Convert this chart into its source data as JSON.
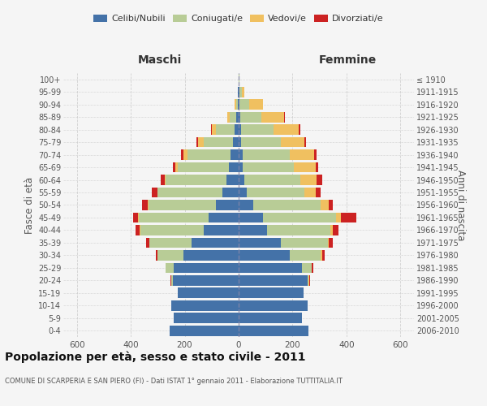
{
  "age_groups": [
    "0-4",
    "5-9",
    "10-14",
    "15-19",
    "20-24",
    "25-29",
    "30-34",
    "35-39",
    "40-44",
    "45-49",
    "50-54",
    "55-59",
    "60-64",
    "65-69",
    "70-74",
    "75-79",
    "80-84",
    "85-89",
    "90-94",
    "95-99",
    "100+"
  ],
  "birth_years": [
    "2006-2010",
    "2001-2005",
    "1996-2000",
    "1991-1995",
    "1986-1990",
    "1981-1985",
    "1976-1980",
    "1971-1975",
    "1966-1970",
    "1961-1965",
    "1956-1960",
    "1951-1955",
    "1946-1950",
    "1941-1945",
    "1936-1940",
    "1931-1935",
    "1926-1930",
    "1921-1925",
    "1916-1920",
    "1911-1915",
    "≤ 1910"
  ],
  "males": {
    "celibi": [
      255,
      240,
      250,
      225,
      245,
      240,
      205,
      175,
      130,
      110,
      85,
      60,
      45,
      35,
      30,
      20,
      15,
      8,
      4,
      2,
      0
    ],
    "coniugati": [
      0,
      0,
      0,
      0,
      5,
      30,
      95,
      155,
      235,
      260,
      250,
      240,
      225,
      190,
      160,
      110,
      70,
      25,
      5,
      2,
      0
    ],
    "vedovi": [
      0,
      0,
      0,
      0,
      0,
      0,
      2,
      2,
      2,
      2,
      2,
      2,
      5,
      10,
      15,
      20,
      15,
      10,
      5,
      0,
      0
    ],
    "divorziati": [
      0,
      0,
      0,
      0,
      2,
      2,
      5,
      10,
      15,
      20,
      20,
      20,
      15,
      10,
      10,
      5,
      2,
      0,
      0,
      0,
      0
    ]
  },
  "females": {
    "nubili": [
      260,
      235,
      255,
      240,
      255,
      235,
      190,
      155,
      105,
      90,
      55,
      30,
      20,
      15,
      15,
      10,
      8,
      5,
      4,
      2,
      0
    ],
    "coniugate": [
      0,
      0,
      0,
      0,
      5,
      35,
      115,
      175,
      235,
      270,
      250,
      215,
      210,
      190,
      175,
      145,
      120,
      80,
      35,
      10,
      2
    ],
    "vedove": [
      0,
      0,
      0,
      0,
      2,
      2,
      5,
      5,
      10,
      20,
      30,
      40,
      60,
      80,
      90,
      90,
      95,
      85,
      50,
      10,
      0
    ],
    "divorziate": [
      0,
      0,
      0,
      0,
      2,
      5,
      10,
      15,
      20,
      55,
      15,
      20,
      20,
      10,
      8,
      5,
      5,
      2,
      2,
      0,
      0
    ]
  },
  "colors": {
    "celibi_nubili": "#4472a8",
    "coniugati": "#b8cc96",
    "vedovi": "#f0c060",
    "divorziati": "#cc2222"
  },
  "xlim": 650,
  "title": "Popolazione per età, sesso e stato civile - 2011",
  "subtitle": "COMUNE DI SCARPERIA E SAN PIERO (FI) - Dati ISTAT 1° gennaio 2011 - Elaborazione TUTTITALIA.IT",
  "ylabel_left": "Fasce di età",
  "ylabel_right": "Anni di nascita",
  "xlabel_left": "Maschi",
  "xlabel_right": "Femmine",
  "bg_color": "#f5f5f5",
  "grid_color": "#cccccc"
}
